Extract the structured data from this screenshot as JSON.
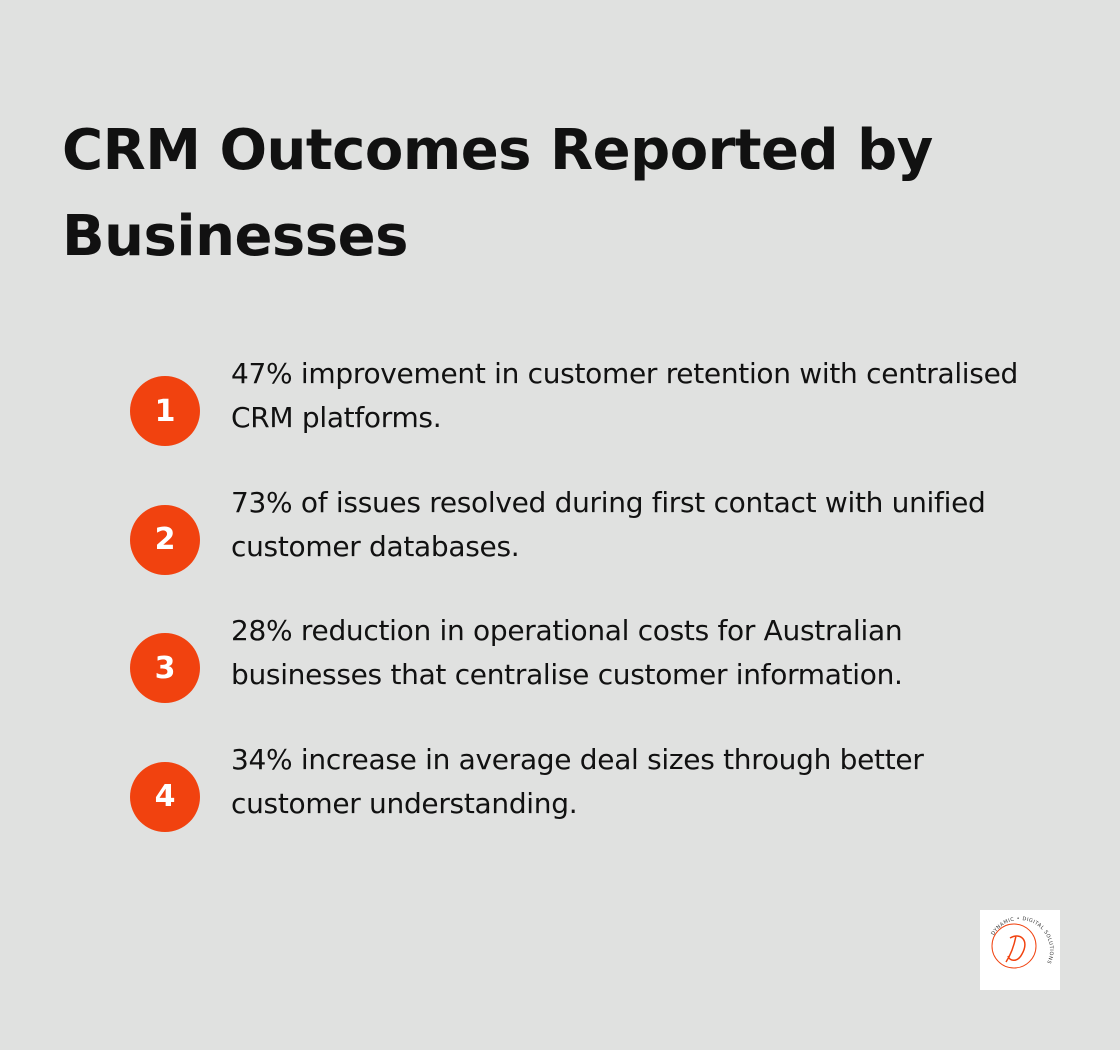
{
  "header": {
    "title": "CRM Outcomes Reported by Businesses"
  },
  "items": [
    {
      "number": "1",
      "text": "47% improvement in customer retention with centralised CRM platforms."
    },
    {
      "number": "2",
      "text": "73% of issues resolved during first contact with unified customer databases."
    },
    {
      "number": "3",
      "text": "28% reduction in operational costs for Australian businesses that centralise customer information."
    },
    {
      "number": "4",
      "text": "34% increase in average deal sizes through better customer understanding."
    }
  ],
  "logo": {
    "text": "DYNAMIC • DIGITAL SOLUTIONS"
  }
}
